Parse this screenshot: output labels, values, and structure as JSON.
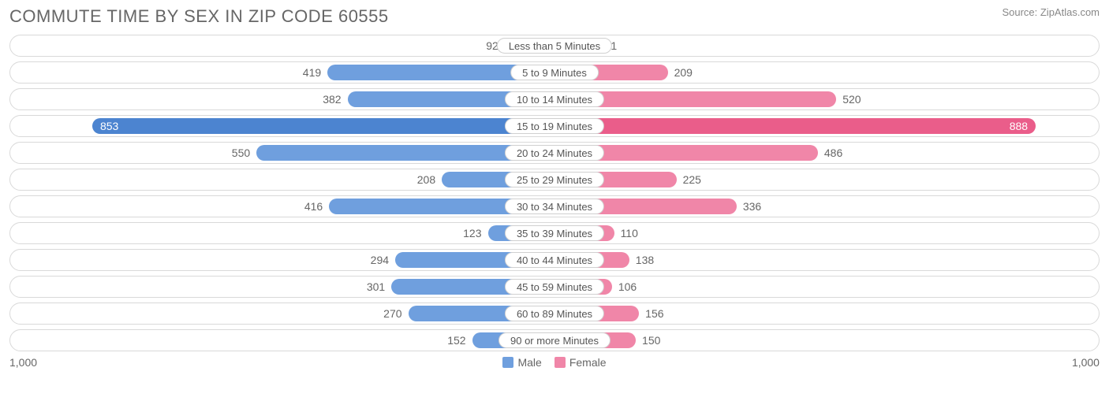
{
  "title": "COMMUTE TIME BY SEX IN ZIP CODE 60555",
  "source": "Source: ZipAtlas.com",
  "axis_max": 1000,
  "axis_label_left": "1,000",
  "axis_label_right": "1,000",
  "legend": {
    "male": {
      "label": "Male",
      "color": "#6f9fde"
    },
    "female": {
      "label": "Female",
      "color": "#f086a8"
    }
  },
  "colors": {
    "male_bar": "#6f9fde",
    "female_bar": "#f086a8",
    "male_highlight": "#4c84d0",
    "female_highlight": "#ea5d8a",
    "row_border": "#d9d9d9",
    "pill_border": "#d0d0d0",
    "text": "#666666",
    "background": "#ffffff"
  },
  "rows": [
    {
      "label": "Less than 5 Minutes",
      "male": 92,
      "female": 81
    },
    {
      "label": "5 to 9 Minutes",
      "male": 419,
      "female": 209
    },
    {
      "label": "10 to 14 Minutes",
      "male": 382,
      "female": 520
    },
    {
      "label": "15 to 19 Minutes",
      "male": 853,
      "female": 888,
      "highlight": true
    },
    {
      "label": "20 to 24 Minutes",
      "male": 550,
      "female": 486
    },
    {
      "label": "25 to 29 Minutes",
      "male": 208,
      "female": 225
    },
    {
      "label": "30 to 34 Minutes",
      "male": 416,
      "female": 336
    },
    {
      "label": "35 to 39 Minutes",
      "male": 123,
      "female": 110
    },
    {
      "label": "40 to 44 Minutes",
      "male": 294,
      "female": 138
    },
    {
      "label": "45 to 59 Minutes",
      "male": 301,
      "female": 106
    },
    {
      "label": "60 to 89 Minutes",
      "male": 270,
      "female": 156
    },
    {
      "label": "90 or more Minutes",
      "male": 152,
      "female": 150
    }
  ]
}
